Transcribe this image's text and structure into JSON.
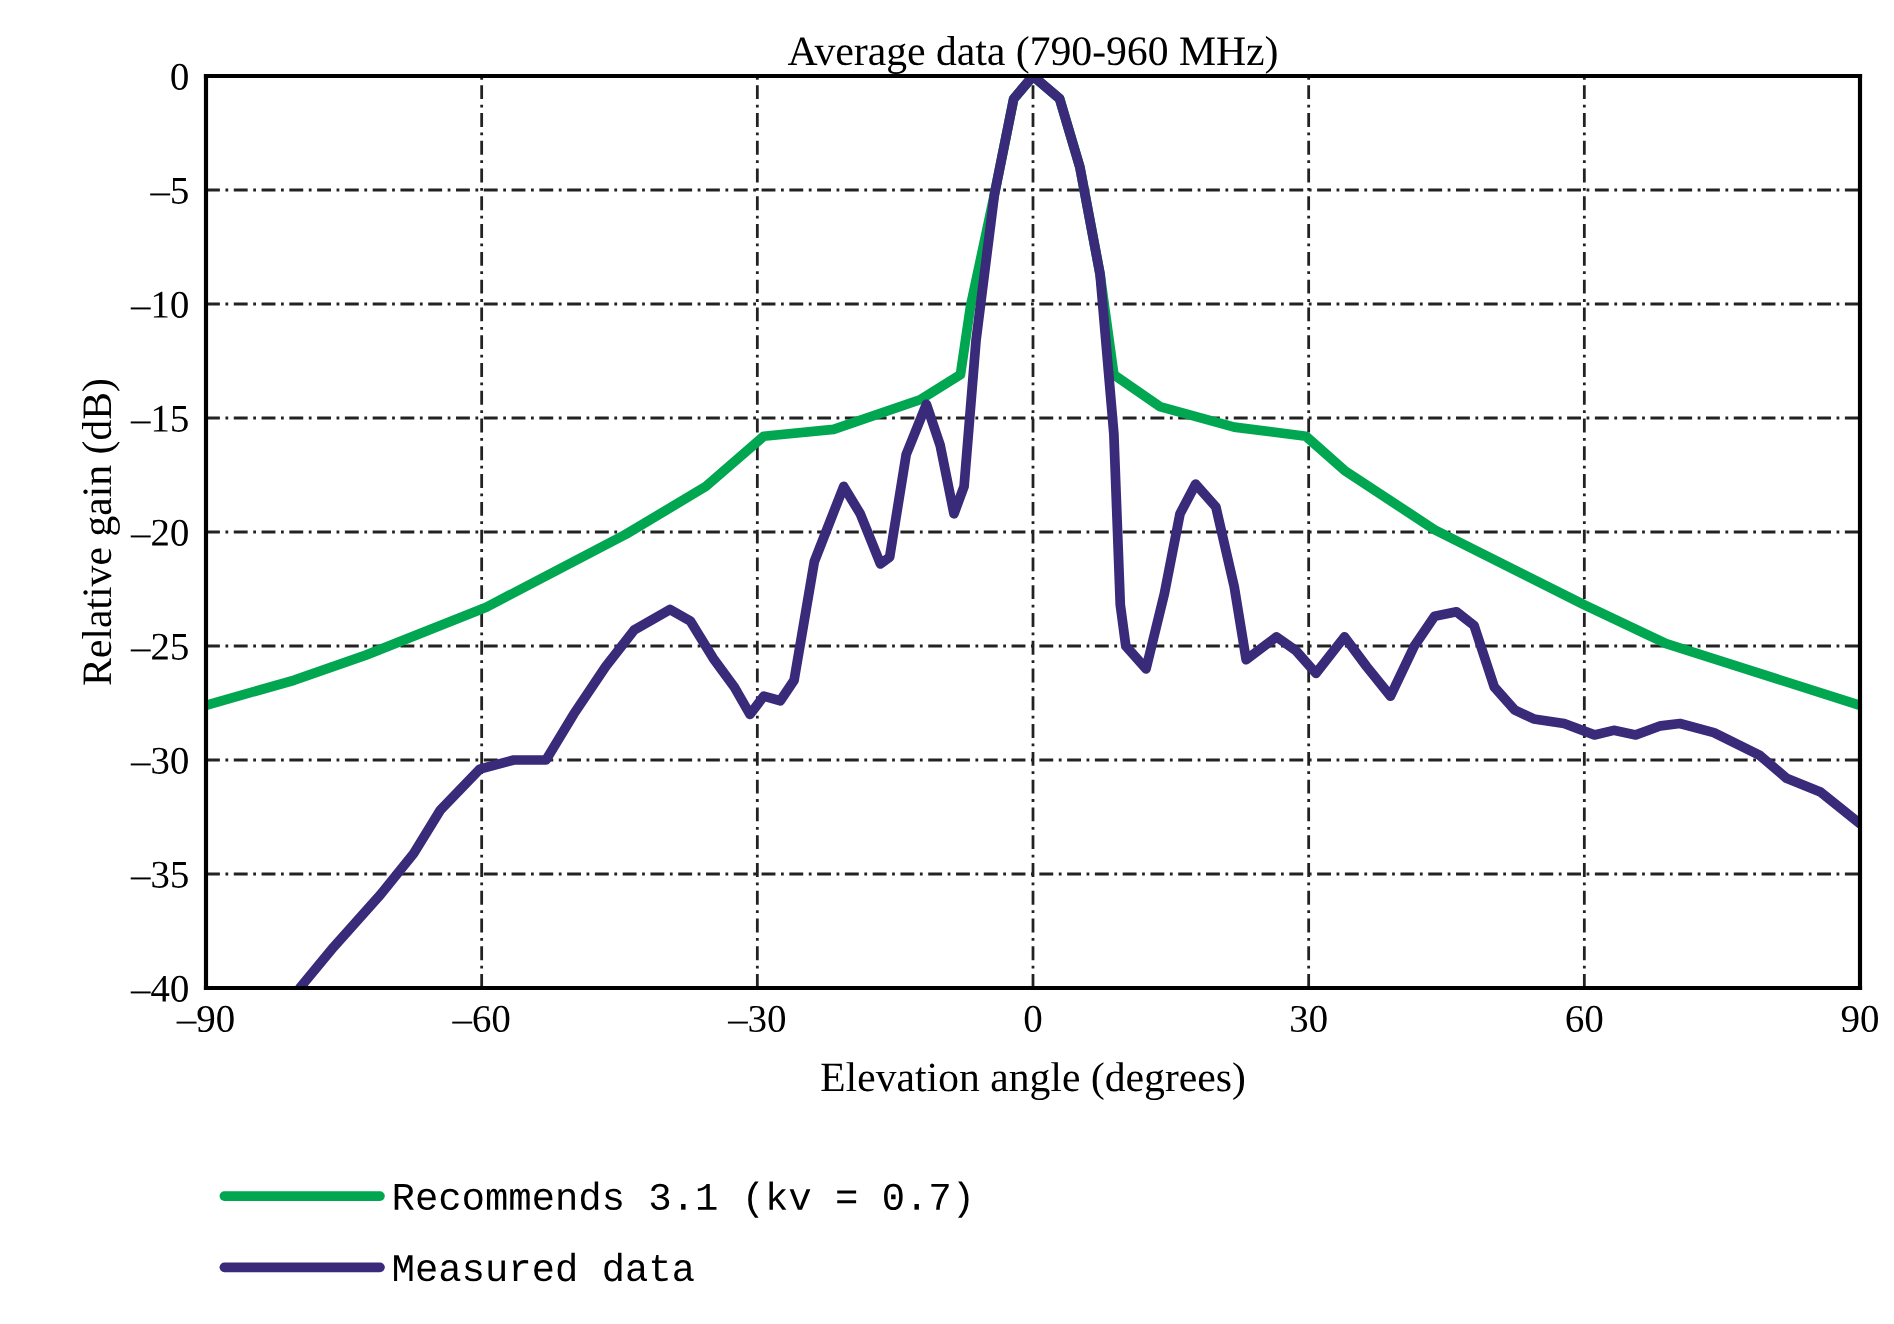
{
  "chart_data": {
    "type": "line",
    "title": "Average data (790-960 MHz)",
    "xlabel": "Elevation angle (degrees)",
    "ylabel": "Relative gain (dB)",
    "xlim": [
      -90,
      90
    ],
    "xticks": [
      {
        "value": -90,
        "label": "–90"
      },
      {
        "value": -60,
        "label": "–60"
      },
      {
        "value": -30,
        "label": "–30"
      },
      0,
      30,
      60,
      90
    ],
    "ylim": [
      -40,
      0
    ],
    "yticks": [
      {
        "value": -40,
        "label": "–40"
      },
      {
        "value": -35,
        "label": "–35"
      },
      {
        "value": -30,
        "label": "–30"
      },
      {
        "value": -25,
        "label": "–25"
      },
      {
        "value": -20,
        "label": "–20"
      },
      {
        "value": -15,
        "label": "–15"
      },
      {
        "value": -10,
        "label": "–10"
      },
      {
        "value": -5,
        "label": "–5"
      },
      0
    ],
    "grid": true,
    "legend": "bottom",
    "marker": "none",
    "line_style": "solid",
    "series": [
      {
        "name": "Recommends 3.1 (kv = 0.7)",
        "color": "#00a650",
        "x": [
          -90,
          -80.4,
          -72.6,
          -59.5,
          -44.3,
          -35.6,
          -29.3,
          -21.7,
          -12.3,
          -7.9,
          -6.8,
          -4.2,
          -2.1,
          0,
          2.9,
          5.1,
          7.3,
          8.8,
          13.8,
          21.9,
          29.7,
          33.9,
          43.7,
          60,
          68.9,
          90
        ],
        "values": [
          -27.6,
          -26.5,
          -25.4,
          -23.3,
          -20.1,
          -18,
          -15.8,
          -15.5,
          -14.2,
          -13.1,
          -10.1,
          -5.2,
          -1,
          0,
          -1,
          -4,
          -8.7,
          -13.1,
          -14.5,
          -15.4,
          -15.8,
          -17.3,
          -19.9,
          -23.2,
          -24.9,
          -27.6
        ]
      },
      {
        "name": "Measured data",
        "color": "#3a2a7a",
        "x": [
          -79.8,
          -76.1,
          -71,
          -67.4,
          -64.5,
          -60.2,
          -56.5,
          -53,
          -50,
          -46.5,
          -43.4,
          -39.5,
          -37.3,
          -34.7,
          -32.5,
          -30.8,
          -29.3,
          -27.5,
          -26,
          -23.8,
          -20.6,
          -18.8,
          -16.6,
          -15.6,
          -13.8,
          -11.6,
          -10.1,
          -8.6,
          -7.5,
          -6.2,
          -4.2,
          -2.1,
          0,
          2.9,
          5.1,
          7.3,
          8.8,
          9.5,
          10.1,
          12.3,
          14.3,
          16,
          17.7,
          19.9,
          21.9,
          23.2,
          26.5,
          28.6,
          30.8,
          33.9,
          36.3,
          38.9,
          41.5,
          43.7,
          46.1,
          48,
          50.2,
          52.4,
          54.5,
          57.8,
          61.1,
          63.2,
          65.6,
          68.3,
          70.4,
          74.1,
          79.1,
          82,
          85.7,
          90
        ],
        "values": [
          -40,
          -38.2,
          -35.9,
          -34.1,
          -32.2,
          -30.4,
          -30,
          -30,
          -28,
          -25.9,
          -24.3,
          -23.4,
          -23.9,
          -25.6,
          -26.8,
          -28,
          -27.2,
          -27.4,
          -26.5,
          -21.3,
          -18,
          -19.2,
          -21.4,
          -21.1,
          -16.6,
          -14.4,
          -16.2,
          -19.2,
          -18,
          -11.6,
          -5.2,
          -1,
          0,
          -1,
          -4,
          -8.7,
          -15.7,
          -23.2,
          -25,
          -26,
          -22.7,
          -19.2,
          -17.9,
          -18.9,
          -22.4,
          -25.6,
          -24.6,
          -25.2,
          -26.2,
          -24.6,
          -25.9,
          -27.2,
          -25,
          -23.7,
          -23.5,
          -24.1,
          -26.8,
          -27.8,
          -28.2,
          -28.4,
          -28.9,
          -28.7,
          -28.9,
          -28.5,
          -28.4,
          -28.8,
          -29.8,
          -30.8,
          -31.4,
          -32.8
        ]
      }
    ]
  }
}
